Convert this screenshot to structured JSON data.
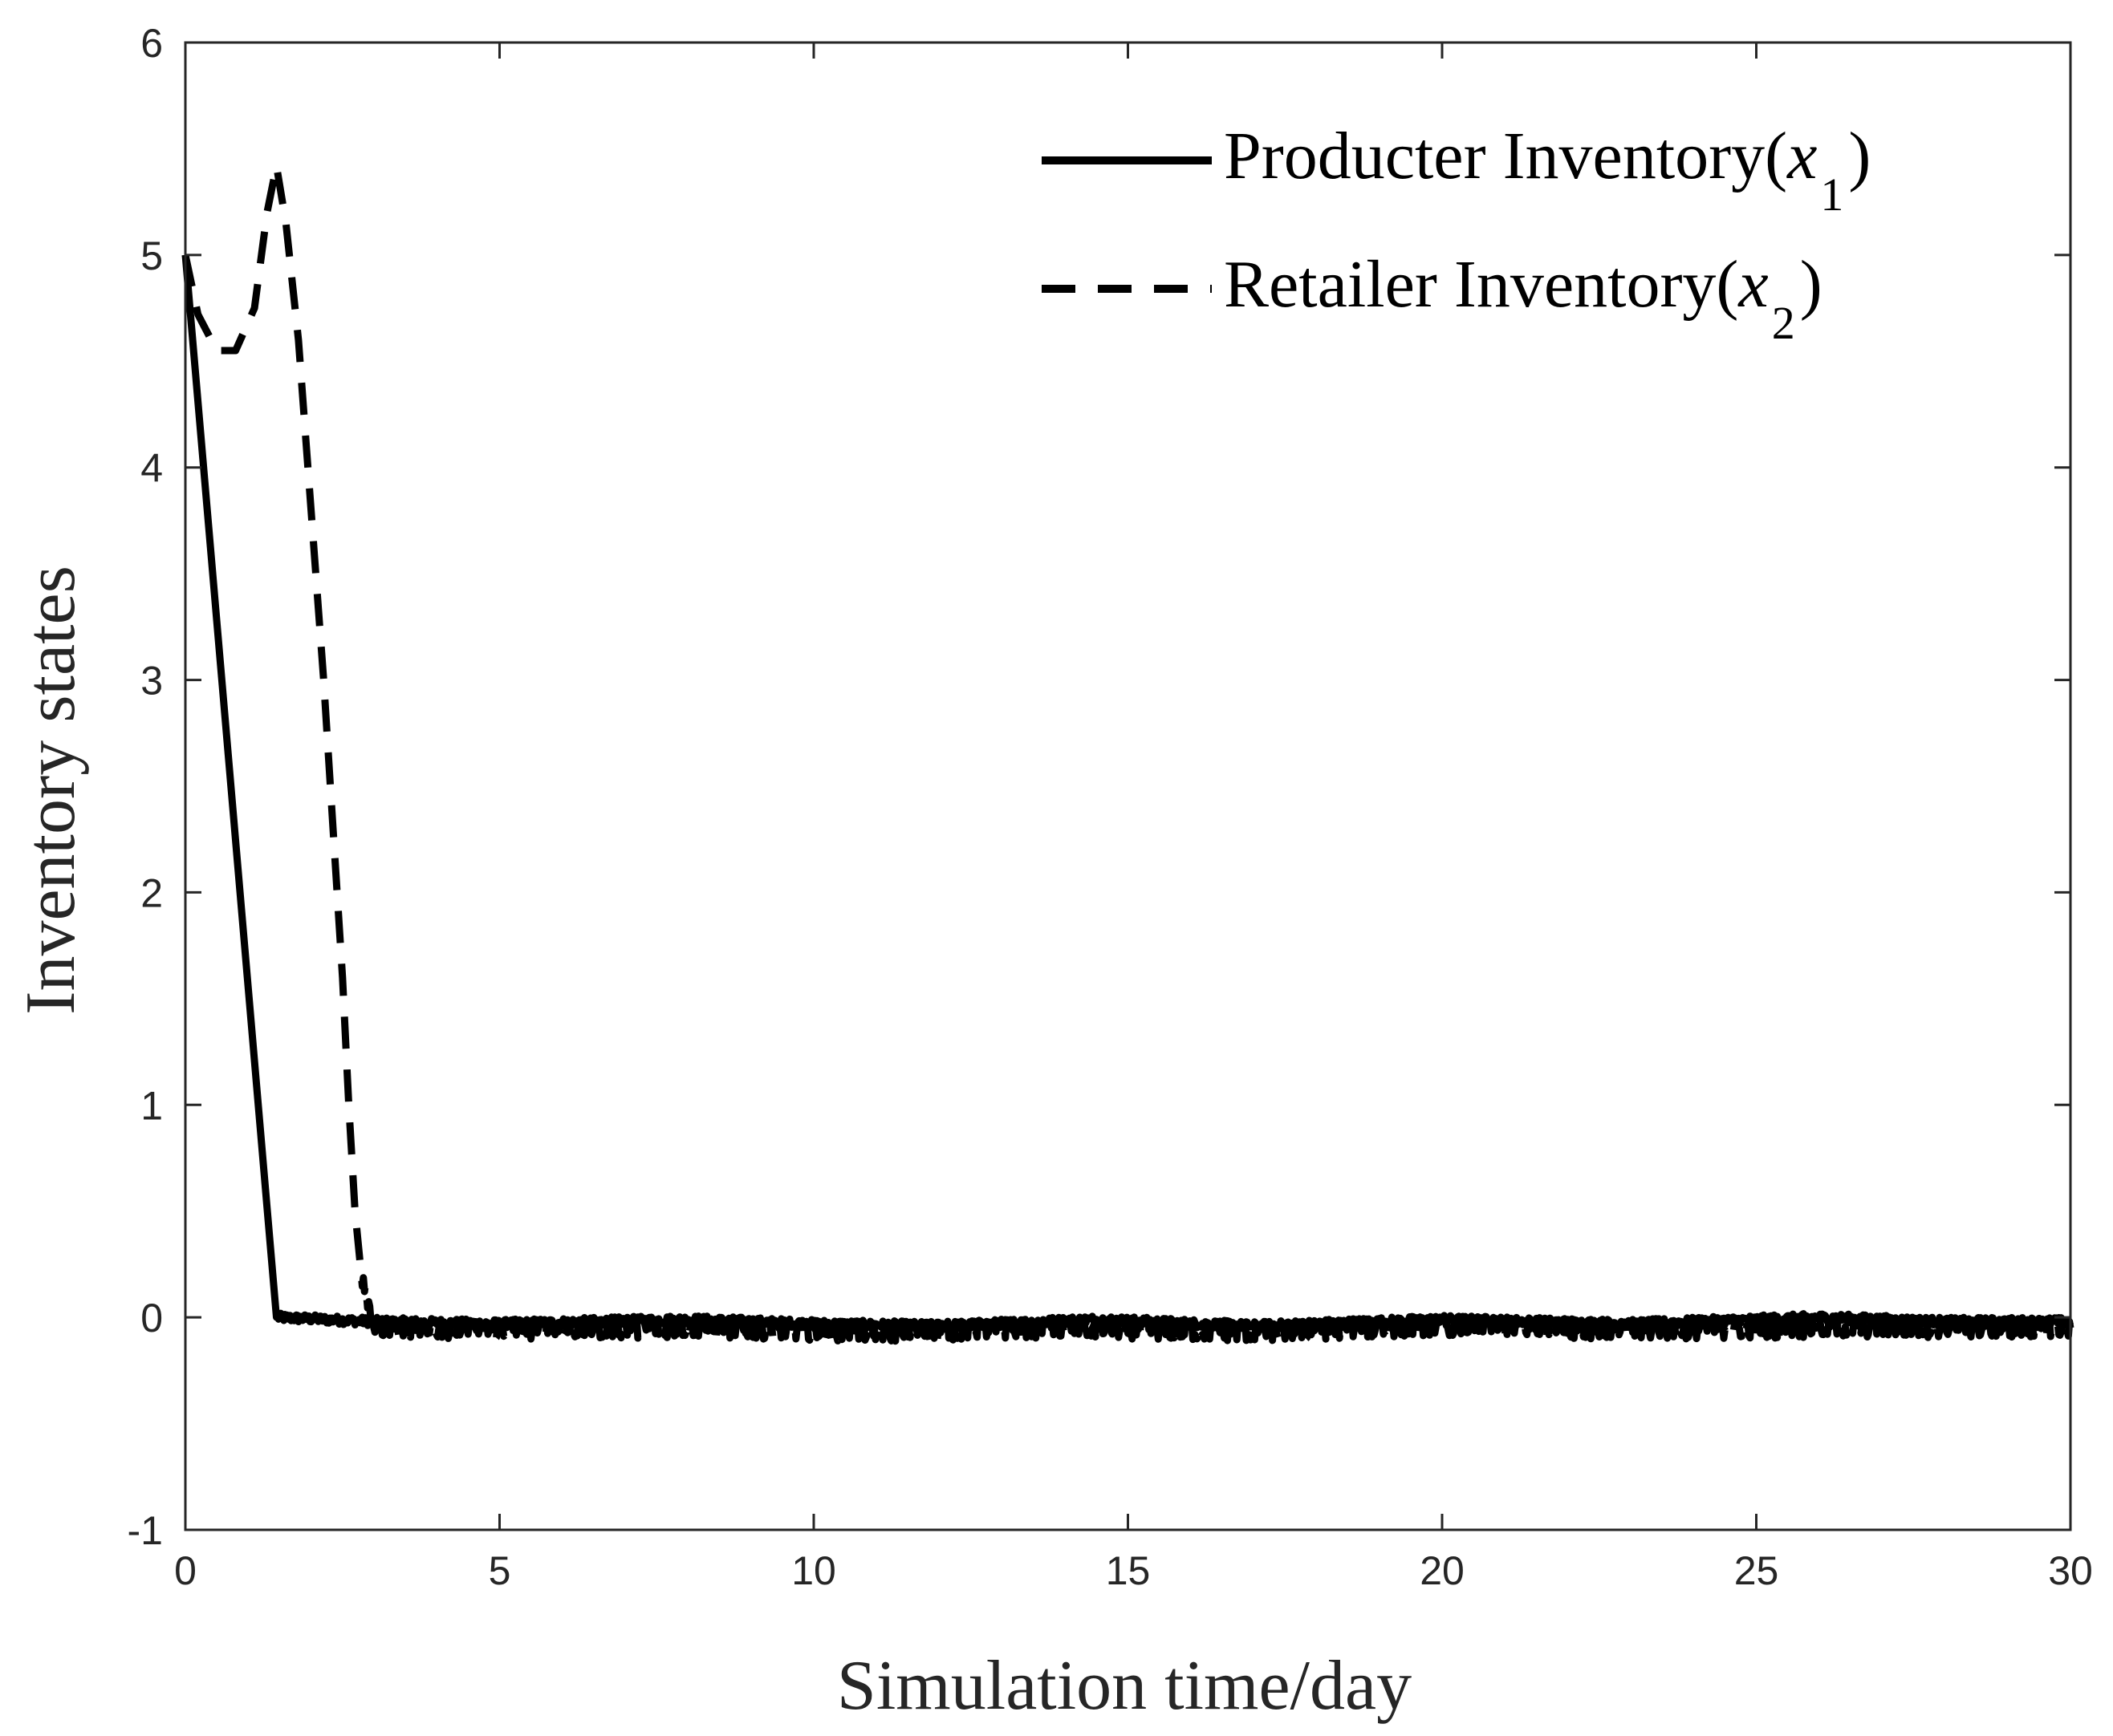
{
  "chart_data": {
    "type": "line",
    "xlabel": "Simulation time/day",
    "ylabel": "Inventory states",
    "xlim": [
      0,
      30
    ],
    "ylim": [
      -1,
      6
    ],
    "xticks": [
      0,
      5,
      10,
      15,
      20,
      25,
      30
    ],
    "yticks": [
      -1,
      0,
      1,
      2,
      3,
      4,
      5,
      6
    ],
    "grid": false,
    "legend_position": "top-right",
    "series": [
      {
        "name": "Producter Inventory(x1)",
        "legend": {
          "prefix": "Producter Inventory(",
          "var": "x",
          "sub": "1",
          "suffix": ")"
        },
        "style": "solid",
        "color": "#000000",
        "points": [
          [
            0,
            5.0
          ],
          [
            1.45,
            0.0
          ],
          [
            3,
            -0.02
          ],
          [
            5,
            -0.03
          ],
          [
            8,
            -0.01
          ],
          [
            10,
            -0.03
          ],
          [
            12,
            -0.04
          ],
          [
            14.5,
            -0.01
          ],
          [
            17,
            -0.04
          ],
          [
            20,
            -0.01
          ],
          [
            23,
            -0.03
          ],
          [
            26,
            0.0
          ],
          [
            28,
            -0.02
          ],
          [
            30,
            -0.02
          ]
        ],
        "noise_amplitude": 0.02
      },
      {
        "name": "Retailer Inventory(x2)",
        "legend": {
          "prefix": "Retailer Inventory(",
          "var": "x",
          "sub": "2",
          "suffix": ")"
        },
        "style": "dashed",
        "color": "#000000",
        "points": [
          [
            0,
            5.0
          ],
          [
            0.2,
            4.72
          ],
          [
            0.5,
            4.55
          ],
          [
            0.8,
            4.55
          ],
          [
            1.1,
            4.75
          ],
          [
            1.3,
            5.2
          ],
          [
            1.45,
            5.42
          ],
          [
            1.6,
            5.15
          ],
          [
            1.8,
            4.6
          ],
          [
            2.0,
            3.8
          ],
          [
            2.2,
            3.0
          ],
          [
            2.35,
            2.3
          ],
          [
            2.5,
            1.6
          ],
          [
            2.6,
            1.0
          ],
          [
            2.7,
            0.5
          ],
          [
            2.8,
            0.2
          ],
          [
            3,
            -0.05
          ],
          [
            5,
            -0.06
          ],
          [
            8,
            -0.05
          ],
          [
            11,
            -0.07
          ],
          [
            14,
            -0.05
          ],
          [
            17,
            -0.07
          ],
          [
            20,
            -0.04
          ],
          [
            23,
            -0.06
          ],
          [
            26,
            -0.05
          ],
          [
            30,
            -0.05
          ]
        ],
        "noise_amplitude": 0.045
      }
    ]
  }
}
